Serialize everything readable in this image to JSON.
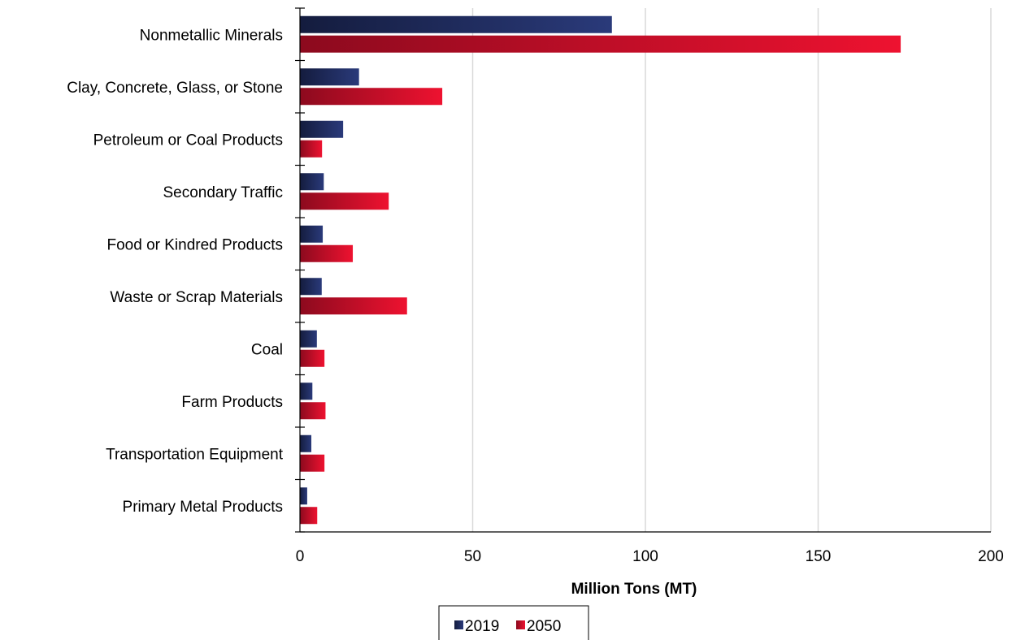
{
  "chart_data": {
    "type": "bar",
    "orientation": "horizontal",
    "categories": [
      "Nonmetallic Minerals",
      "Clay, Concrete, Glass, or Stone",
      "Petroleum or Coal Products",
      "Secondary Traffic",
      "Food or Kindred Products",
      "Waste or Scrap Materials",
      "Coal",
      "Farm Products",
      "Transportation Equipment",
      "Primary Metal Products"
    ],
    "series": [
      {
        "name": "2019",
        "values": [
          90.3,
          17.1,
          12.5,
          6.9,
          6.6,
          6.3,
          4.9,
          3.6,
          3.3,
          2.1
        ]
      },
      {
        "name": "2050",
        "values": [
          173.9,
          41.2,
          6.4,
          25.7,
          15.3,
          31.0,
          7.1,
          7.4,
          7.1,
          5.0
        ]
      }
    ],
    "xlabel": "Million Tons (MT)",
    "xlim": [
      0,
      200
    ],
    "xticks": [
      0,
      50,
      100,
      150,
      200
    ],
    "grid": true,
    "legend_position": "bottom",
    "colors": {
      "2019_dark": "#141c3e",
      "2019_light": "#2a3a7a",
      "2050_dark": "#8c0a1e",
      "2050_light": "#ee1230",
      "grid": "#d9d9d9",
      "axis": "#000000"
    }
  }
}
